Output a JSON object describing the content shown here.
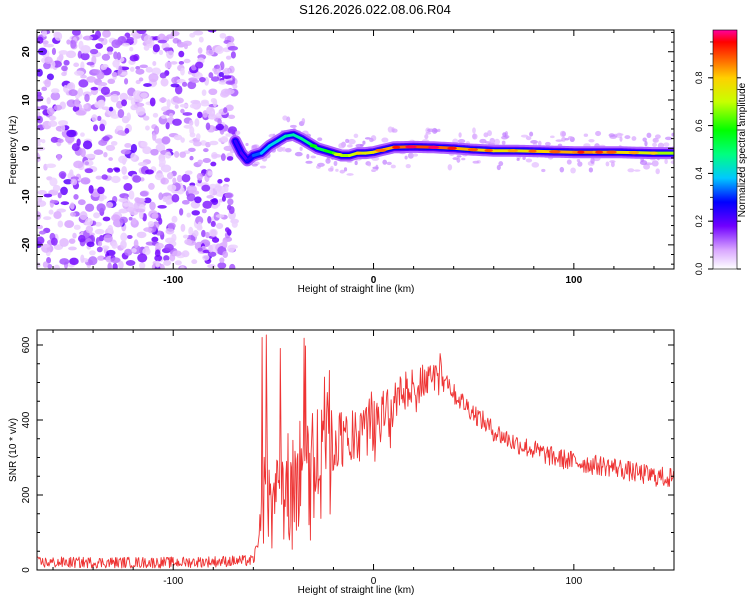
{
  "title": "S126.2026.022.08.06.R04",
  "chart_data": [
    {
      "type": "heatmap",
      "xlabel": "Height of straight line (km)",
      "ylabel": "Frequency (Hz)",
      "xlim": [
        -168,
        150
      ],
      "ylim": [
        -25,
        24.5
      ],
      "xticks": [
        -100,
        0,
        100
      ],
      "yticks": [
        -20,
        -10,
        0,
        10,
        20
      ],
      "noise_region_x": [
        -168,
        -69
      ],
      "ridge": {
        "x": [
          -69,
          -66,
          -63,
          -60,
          -56,
          -52,
          -48,
          -44,
          -40,
          -36,
          -32,
          -28,
          -24,
          -20,
          -16,
          -12,
          -8,
          -4,
          0,
          5,
          10,
          20,
          30,
          40,
          50,
          60,
          70,
          80,
          90,
          100,
          110,
          120,
          130,
          140,
          150
        ],
        "freq": [
          1.5,
          -1.0,
          -2.5,
          -1.5,
          -1.0,
          0.5,
          1.5,
          2.5,
          2.8,
          2.0,
          1.0,
          0.0,
          -0.5,
          -1.0,
          -1.5,
          -1.5,
          -1.0,
          -1.0,
          -0.8,
          -0.3,
          0.2,
          0.3,
          0.2,
          0.0,
          -0.3,
          -0.5,
          -0.5,
          -0.6,
          -0.7,
          -0.8,
          -0.8,
          -0.8,
          -0.9,
          -1.0,
          -1.0
        ],
        "amplitude": [
          0.25,
          0.2,
          0.2,
          0.3,
          0.35,
          0.4,
          0.4,
          0.45,
          0.45,
          0.45,
          0.5,
          0.5,
          0.55,
          0.6,
          0.65,
          0.7,
          0.7,
          0.75,
          0.75,
          0.8,
          0.85,
          0.9,
          0.9,
          0.85,
          0.8,
          0.8,
          0.75,
          0.8,
          0.8,
          0.85,
          0.85,
          0.8,
          0.75,
          0.7,
          0.65
        ]
      },
      "colorbar": {
        "label": "Normalized spectral amplitude",
        "range": [
          0,
          1
        ],
        "ticks": [
          0.0,
          0.2,
          0.4,
          0.6,
          0.8
        ]
      }
    },
    {
      "type": "line",
      "xlabel": "Height of straight line (km)",
      "ylabel": "SNR (10 * v/v)",
      "xlim": [
        -168,
        150
      ],
      "ylim": [
        0,
        640
      ],
      "xticks": [
        -100,
        0,
        100
      ],
      "yticks": [
        0,
        200,
        400,
        600
      ],
      "color": "#ee3333",
      "series": [
        {
          "name": "SNR",
          "x": [
            -168,
            -100,
            -60,
            -57,
            -55,
            -53,
            -51,
            -48,
            -45,
            -42,
            -40,
            -37,
            -34,
            -30,
            -25,
            -20,
            -15,
            -10,
            -5,
            0,
            5,
            10,
            15,
            20,
            25,
            30,
            35,
            40,
            50,
            60,
            70,
            80,
            90,
            100,
            110,
            120,
            130,
            140,
            150
          ],
          "y": [
            20,
            20,
            25,
            90,
            250,
            400,
            200,
            300,
            260,
            310,
            350,
            300,
            380,
            320,
            400,
            380,
            420,
            420,
            440,
            460,
            470,
            480,
            500,
            510,
            540,
            560,
            530,
            470,
            420,
            370,
            340,
            320,
            300,
            290,
            280,
            275,
            260,
            250,
            245
          ]
        }
      ]
    }
  ]
}
